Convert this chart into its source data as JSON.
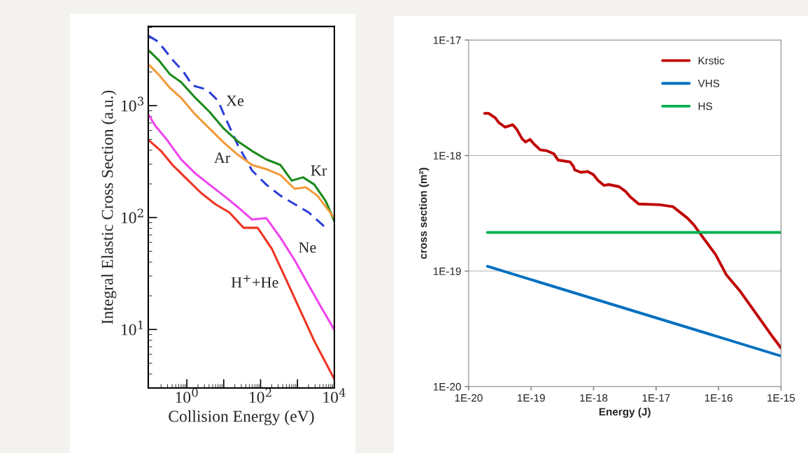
{
  "chart_data": [
    {
      "type": "line",
      "xlabel": "Collision Energy (eV)",
      "ylabel": "Integral Elastic Cross Section (a.u.)",
      "log": "xy",
      "xlim": [
        0.09,
        10000
      ],
      "ylim": [
        3,
        5100
      ],
      "xticks": [
        {
          "value": 1,
          "label": "10$^{0}$"
        },
        {
          "value": 10,
          "label": null
        },
        {
          "value": 100,
          "label": "10$^{2}$"
        },
        {
          "value": 1000,
          "label": null
        },
        {
          "value": 10000,
          "label": "10$^{4}$"
        }
      ],
      "yticks": [
        {
          "value": 10,
          "label": "10$^{1}$"
        },
        {
          "value": 100,
          "label": "10$^{2}$"
        },
        {
          "value": 1000,
          "label": "10$^{3}$"
        }
      ],
      "grid": false,
      "legend": false,
      "series": [
        {
          "name": "Xe",
          "color": "#2b3fd6",
          "line_style": "dashed",
          "x": [
            0.091,
            0.17,
            0.41,
            0.84,
            1.43,
            3.45,
            7.0,
            11.9,
            24.3,
            58.9,
            142.6,
            346,
            836,
            2030,
            5370
          ],
          "values": [
            4217,
            3715,
            2570,
            1972,
            1514,
            1396,
            1109,
            741,
            442,
            263,
            197,
            157,
            132,
            111,
            83
          ]
        },
        {
          "name": "Kr",
          "color": "#1a8a1a",
          "line_style": "solid",
          "x": [
            0.091,
            0.17,
            0.35,
            0.7,
            1.7,
            4.12,
            10,
            24.3,
            58.9,
            142.6,
            346,
            702,
            1426,
            2880,
            5860,
            10000
          ],
          "values": [
            3126,
            2570,
            1905,
            1622,
            1175,
            881,
            624,
            479,
            393,
            331,
            295,
            214,
            229,
            197,
            140,
            93
          ]
        },
        {
          "name": "Ar",
          "color": "#f39a3a",
          "line_style": "solid",
          "x": [
            0.091,
            0.17,
            0.35,
            0.7,
            1.7,
            4.12,
            10,
            24.3,
            58.9,
            142.6,
            346,
            836,
            1700,
            3460,
            10000
          ],
          "values": [
            2344,
            1905,
            1437,
            1175,
            832,
            624,
            468,
            363,
            295,
            271,
            240,
            181,
            186,
            157,
            99
          ]
        },
        {
          "name": "Ne",
          "color": "#ee44ee",
          "line_style": "solid",
          "x": [
            0.091,
            0.14,
            0.29,
            0.7,
            1.7,
            4.12,
            10,
            24.3,
            58.9,
            142.6,
            346,
            836,
            2030,
            4920,
            10000
          ],
          "values": [
            832,
            661,
            495,
            331,
            248,
            197,
            157,
            124,
            96,
            99,
            66,
            41.7,
            24.8,
            14.8,
            9.9
          ]
        },
        {
          "name": "H$^{+}$+He",
          "color": "#ee3322",
          "line_style": "solid",
          "x": [
            0.091,
            0.2,
            0.41,
            1.0,
            2.43,
            5.9,
            14.3,
            34.6,
            83.6,
            203,
            492,
            1190,
            2880,
            10000
          ],
          "values": [
            495,
            393,
            295,
            221,
            166,
            132,
            111,
            81,
            81,
            52.5,
            27.9,
            14.8,
            7.85,
            3.6
          ]
        }
      ]
    },
    {
      "type": "line",
      "xlabel": "Energy (J)",
      "ylabel": "cross section (m²)",
      "log": "xy",
      "xlim": [
        1e-20,
        1e-15
      ],
      "ylim": [
        1e-20,
        1e-17
      ],
      "xticks": [
        {
          "value": 1e-20,
          "label": "1E-20"
        },
        {
          "value": 1e-19,
          "label": "1E-19"
        },
        {
          "value": 1e-18,
          "label": "1E-18"
        },
        {
          "value": 1e-17,
          "label": "1E-17"
        },
        {
          "value": 1e-16,
          "label": "1E-16"
        },
        {
          "value": 1e-15,
          "label": "1E-15"
        }
      ],
      "yticks": [
        {
          "value": 1e-20,
          "label": "1E-20"
        },
        {
          "value": 1e-19,
          "label": "1E-19"
        },
        {
          "value": 1e-18,
          "label": "1E-18"
        },
        {
          "value": 1e-17,
          "label": "1E-17"
        }
      ],
      "grid": "y",
      "legend": "top right",
      "series": [
        {
          "name": "Krstic",
          "color": "#c00000",
          "x": [
            1.8e-20,
            2.09e-20,
            2.67e-20,
            3.04e-20,
            3.85e-20,
            5.07e-20,
            5.88e-20,
            7.16e-20,
            8.13e-20,
            9.61e-20,
            1.11e-19,
            1.4e-19,
            1.79e-19,
            2.29e-19,
            2.7e-19,
            4.21e-19,
            4.78e-19,
            4.98e-19,
            6.24e-19,
            7.98e-19,
            9.91e-19,
            1.18e-18,
            1.47e-18,
            1.75e-18,
            2.55e-18,
            3.23e-18,
            3.85e-18,
            5.27e-18,
            1.14e-17,
            1.86e-17,
            3.19e-17,
            4.08e-17,
            5.22e-17,
            8.97e-17,
            1.33e-16,
            2.18e-16,
            3.56e-16,
            7.45e-16,
            1e-15
          ],
          "values": [
            2.32e-18,
            2.32e-18,
            2.12e-18,
            1.93e-18,
            1.76e-18,
            1.85e-18,
            1.69e-18,
            1.4e-18,
            1.31e-18,
            1.38e-18,
            1.26e-18,
            1.12e-18,
            1.1e-18,
            1.04e-18,
            9.14e-19,
            8.81e-19,
            8.01e-19,
            7.52e-19,
            7.16e-19,
            7.28e-19,
            6.84e-19,
            6.08e-19,
            5.52e-19,
            5.61e-19,
            5.38e-19,
            4.91e-19,
            4.39e-19,
            3.81e-19,
            3.75e-19,
            3.61e-19,
            2.87e-19,
            2.49e-19,
            2.07e-19,
            1.39e-19,
            9.31e-20,
            6.78e-20,
            4.67e-20,
            2.67e-20,
            2.16e-20
          ]
        },
        {
          "name": "VHS",
          "color": "#0070c0",
          "x": [
            2e-20,
            1e-15
          ],
          "values": [
            1.1e-19,
            1.84e-20
          ]
        },
        {
          "name": "HS",
          "color": "#00b050",
          "x": [
            2e-20,
            1e-15
          ],
          "values": [
            2.16e-19,
            2.16e-19
          ]
        }
      ]
    }
  ]
}
